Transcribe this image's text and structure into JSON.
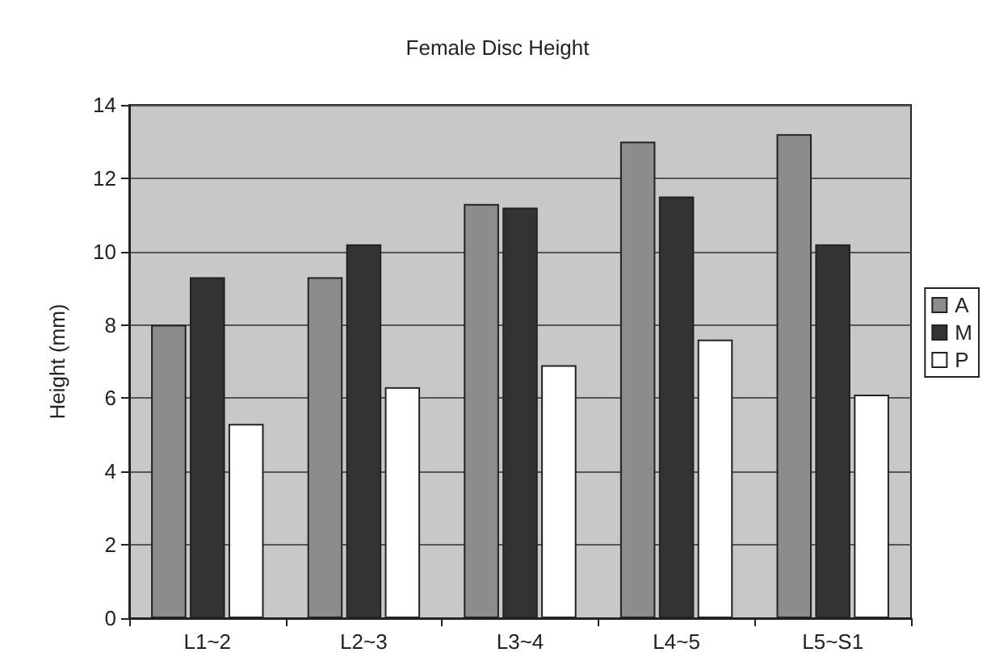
{
  "chart_data": {
    "type": "bar",
    "title": "Female Disc Height",
    "ylabel": "Height (mm)",
    "categories": [
      "L1~2",
      "L2~3",
      "L3~4",
      "L4~5",
      "L5~S1"
    ],
    "series": [
      {
        "name": "A",
        "color": "#8c8c8c",
        "values": [
          8.0,
          9.3,
          11.3,
          13.0,
          13.2
        ]
      },
      {
        "name": "M",
        "color": "#333333",
        "values": [
          9.3,
          10.2,
          11.2,
          11.5,
          10.2
        ]
      },
      {
        "name": "P",
        "color": "#ffffff",
        "values": [
          5.3,
          6.3,
          6.9,
          7.6,
          6.1
        ]
      }
    ],
    "ylim": [
      0,
      14
    ],
    "yticks": [
      0,
      2,
      4,
      6,
      8,
      10,
      12,
      14
    ],
    "grid": "y",
    "legend": "right"
  }
}
